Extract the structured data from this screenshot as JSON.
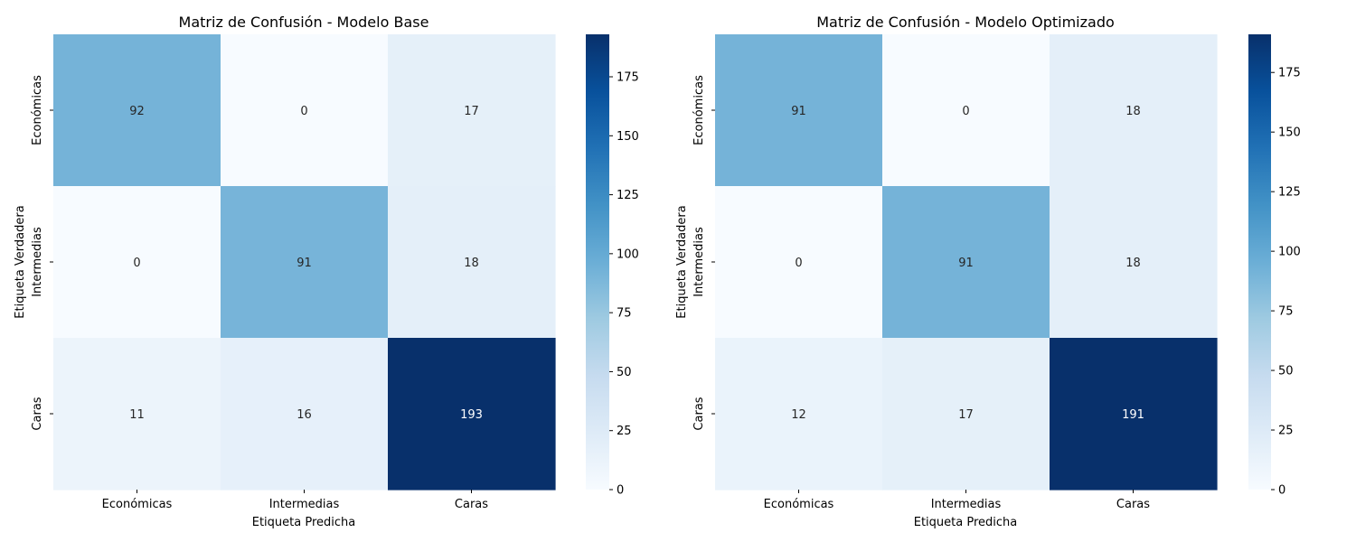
{
  "colormap": "Blues",
  "chart_data": [
    {
      "type": "heatmap",
      "title": "Matriz de Confusión - Modelo Base",
      "xlabel": "Etiqueta Predicha",
      "ylabel": "Etiqueta Verdadera",
      "x_categories": [
        "Económicas",
        "Intermedias",
        "Caras"
      ],
      "y_categories": [
        "Económicas",
        "Intermedias",
        "Caras"
      ],
      "values": [
        [
          92,
          0,
          17
        ],
        [
          0,
          91,
          18
        ],
        [
          11,
          16,
          193
        ]
      ],
      "colorbar": {
        "range": [
          0,
          193
        ],
        "ticks": [
          0,
          25,
          50,
          75,
          100,
          125,
          150,
          175
        ]
      }
    },
    {
      "type": "heatmap",
      "title": "Matriz de Confusión - Modelo Optimizado",
      "xlabel": "Etiqueta Predicha",
      "ylabel": "Etiqueta Verdadera",
      "x_categories": [
        "Económicas",
        "Intermedias",
        "Caras"
      ],
      "y_categories": [
        "Económicas",
        "Intermedias",
        "Caras"
      ],
      "values": [
        [
          91,
          0,
          18
        ],
        [
          0,
          91,
          18
        ],
        [
          12,
          17,
          191
        ]
      ],
      "colorbar": {
        "range": [
          0,
          191
        ],
        "ticks": [
          0,
          25,
          50,
          75,
          100,
          125,
          150,
          175
        ]
      }
    }
  ]
}
